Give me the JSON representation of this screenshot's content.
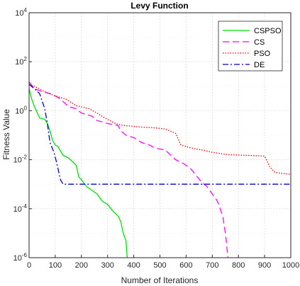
{
  "chart_data": {
    "type": "line",
    "title": "Levy Function",
    "xlabel": "Number of Iterations",
    "ylabel": "Fitness Value",
    "xlim": [
      0,
      1000
    ],
    "ylim": [
      1e-06,
      10000
    ],
    "yscale": "log",
    "grid": true,
    "legend_position": "top-right",
    "x_ticks": [
      "0",
      "100",
      "200",
      "300",
      "400",
      "500",
      "600",
      "700",
      "800",
      "900",
      "1000"
    ],
    "y_ticks": [
      {
        "base": "10",
        "exp": "4",
        "value": 10000
      },
      {
        "base": "10",
        "exp": "2",
        "value": 100
      },
      {
        "base": "10",
        "exp": "0",
        "value": 1
      },
      {
        "base": "10",
        "exp": "-2",
        "value": 0.01
      },
      {
        "base": "10",
        "exp": "-4",
        "value": 0.0001
      },
      {
        "base": "10",
        "exp": "-6",
        "value": 1e-06
      }
    ],
    "series": [
      {
        "name": "CSPSO",
        "color": "#00dd00",
        "dash": "solid",
        "points": [
          [
            0,
            8
          ],
          [
            10,
            3
          ],
          [
            20,
            1.5
          ],
          [
            30,
            0.9
          ],
          [
            40,
            0.5
          ],
          [
            60,
            0.45
          ],
          [
            70,
            0.3
          ],
          [
            80,
            0.15
          ],
          [
            90,
            0.06
          ],
          [
            100,
            0.04
          ],
          [
            110,
            0.035
          ],
          [
            130,
            0.015
          ],
          [
            150,
            0.012
          ],
          [
            180,
            0.006
          ],
          [
            190,
            0.002
          ],
          [
            200,
            0.0015
          ],
          [
            220,
            0.0008
          ],
          [
            260,
            0.0004
          ],
          [
            280,
            0.0002
          ],
          [
            300,
            0.00015
          ],
          [
            320,
            8e-05
          ],
          [
            340,
            5e-05
          ],
          [
            350,
            3e-05
          ],
          [
            360,
            1e-05
          ],
          [
            370,
            5e-06
          ],
          [
            375,
            1e-06
          ]
        ]
      },
      {
        "name": "CS",
        "color": "#ff00ff",
        "dash": "dashed",
        "points": [
          [
            0,
            15
          ],
          [
            20,
            8
          ],
          [
            50,
            6
          ],
          [
            80,
            5
          ],
          [
            100,
            4
          ],
          [
            120,
            3
          ],
          [
            150,
            1.5
          ],
          [
            180,
            1.2
          ],
          [
            200,
            0.8
          ],
          [
            240,
            0.6
          ],
          [
            260,
            0.4
          ],
          [
            300,
            0.3
          ],
          [
            340,
            0.25
          ],
          [
            350,
            0.15
          ],
          [
            370,
            0.1
          ],
          [
            400,
            0.08
          ],
          [
            430,
            0.05
          ],
          [
            460,
            0.04
          ],
          [
            480,
            0.03
          ],
          [
            520,
            0.025
          ],
          [
            560,
            0.01
          ],
          [
            590,
            0.007
          ],
          [
            620,
            0.004
          ],
          [
            660,
            0.0012
          ],
          [
            680,
            0.0008
          ],
          [
            700,
            0.0004
          ],
          [
            720,
            0.0002
          ],
          [
            740,
            5e-05
          ],
          [
            750,
            1e-05
          ],
          [
            760,
            1e-06
          ]
        ]
      },
      {
        "name": "PSO",
        "color": "#e8000b",
        "dash": "dotted",
        "points": [
          [
            0,
            12
          ],
          [
            20,
            10
          ],
          [
            60,
            6
          ],
          [
            100,
            4
          ],
          [
            140,
            3
          ],
          [
            180,
            1.6
          ],
          [
            230,
            1.2
          ],
          [
            260,
            0.8
          ],
          [
            290,
            0.5
          ],
          [
            330,
            0.3
          ],
          [
            360,
            0.25
          ],
          [
            420,
            0.22
          ],
          [
            480,
            0.2
          ],
          [
            520,
            0.18
          ],
          [
            560,
            0.12
          ],
          [
            580,
            0.04
          ],
          [
            620,
            0.03
          ],
          [
            660,
            0.025
          ],
          [
            700,
            0.02
          ],
          [
            760,
            0.016
          ],
          [
            840,
            0.015
          ],
          [
            900,
            0.014
          ],
          [
            920,
            0.005
          ],
          [
            940,
            0.003
          ],
          [
            1000,
            0.0025
          ]
        ]
      },
      {
        "name": "DE",
        "color": "#0000cc",
        "dash": "dashdot",
        "points": [
          [
            0,
            12
          ],
          [
            20,
            8
          ],
          [
            40,
            5
          ],
          [
            60,
            1.2
          ],
          [
            70,
            0.3
          ],
          [
            80,
            0.05
          ],
          [
            95,
            0.02
          ],
          [
            105,
            0.008
          ],
          [
            120,
            0.0015
          ],
          [
            130,
            0.001
          ],
          [
            1000,
            0.001
          ]
        ]
      }
    ]
  }
}
